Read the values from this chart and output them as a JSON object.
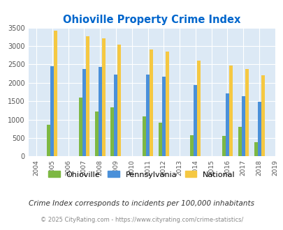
{
  "title": "Ohioville Property Crime Index",
  "title_color": "#0066cc",
  "years": [
    2005,
    2007,
    2008,
    2009,
    2011,
    2012,
    2014,
    2016,
    2017,
    2018
  ],
  "ohioville": [
    860,
    1600,
    1220,
    1340,
    1090,
    910,
    570,
    560,
    800,
    380
  ],
  "pennsylvania": [
    2460,
    2370,
    2440,
    2220,
    2230,
    2160,
    1940,
    1720,
    1630,
    1490
  ],
  "national": [
    3420,
    3260,
    3210,
    3040,
    2900,
    2850,
    2600,
    2470,
    2370,
    2210
  ],
  "ohioville_color": "#7db843",
  "pennsylvania_color": "#4a90d9",
  "national_color": "#f5c842",
  "background_color": "#ffffff",
  "plot_bg_color": "#dce9f5",
  "ylim": [
    0,
    3500
  ],
  "yticks": [
    0,
    500,
    1000,
    1500,
    2000,
    2500,
    3000,
    3500
  ],
  "xtick_start": 2004,
  "xtick_end": 2019,
  "bar_width": 0.22,
  "legend_labels": [
    "Ohioville",
    "Pennsylvania",
    "National"
  ],
  "subtitle": "Crime Index corresponds to incidents per 100,000 inhabitants",
  "subtitle_color": "#333333",
  "footer": "© 2025 CityRating.com - https://www.cityrating.com/crime-statistics/",
  "footer_color": "#888888",
  "grid_color": "#ffffff"
}
